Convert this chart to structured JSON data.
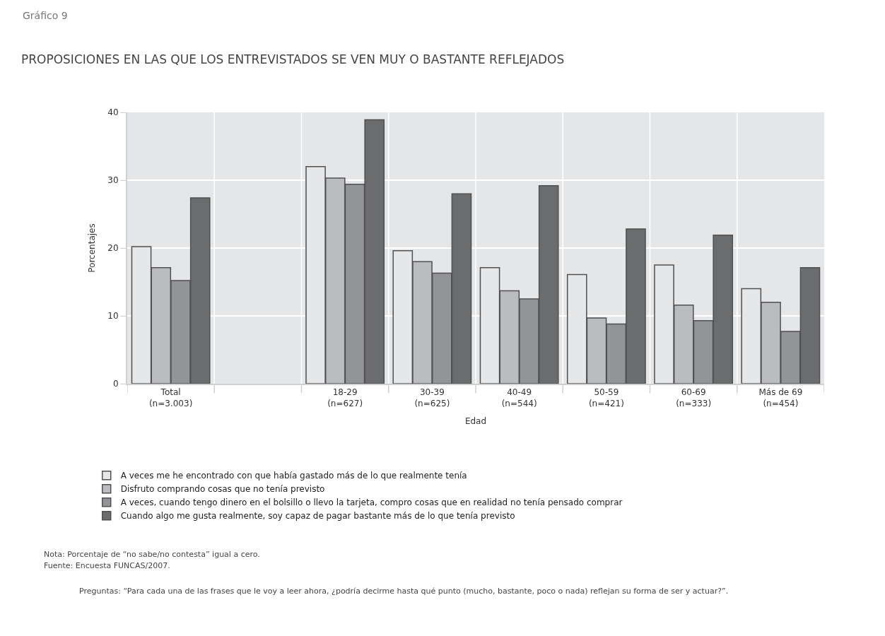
{
  "chart_data": {
    "type": "bar",
    "title": "PROPOSICIONES EN LAS QUE LOS ENTREVISTADOS SE VEN MUY O BASTANTE REFLEJADOS",
    "xlabel": "Edad",
    "ylabel": "Porcentajes",
    "categories": [
      "Total\n(n=3.003)",
      null,
      "18-29\n(n=627)",
      "30-39\n(n=625)",
      "40-49\n(n=544)",
      "50-59\n(n=421)",
      "60-69\n(n=333)",
      "Más de 69\n(n=454)"
    ],
    "series": [
      {
        "name": "A veces me he encontrado con que había gastado más de lo que realmente tenía",
        "color": "#e6e7e9",
        "values": [
          20.2,
          null,
          32.0,
          19.6,
          17.1,
          16.1,
          17.5,
          14.0
        ]
      },
      {
        "name": "Disfruto comprando cosas que no tenía previsto",
        "color": "#bbbcc0",
        "values": [
          17.1,
          null,
          30.3,
          18.0,
          13.7,
          9.7,
          11.6,
          12.0
        ]
      },
      {
        "name": "A veces, cuando tengo dinero en el bolsillo o llevo la tarjeta, compro cosas que en realidad no tenía pensado comprar",
        "color": "#939498",
        "values": [
          15.2,
          null,
          29.4,
          16.3,
          12.5,
          8.8,
          9.3,
          7.7
        ]
      },
      {
        "name": "Cuando algo me gusta realmente, soy capaz de pagar bastante más de lo que tenía previsto",
        "color": "#6b6c6e",
        "values": [
          27.4,
          null,
          38.9,
          28.0,
          29.2,
          22.8,
          21.9,
          17.1
        ]
      }
    ],
    "ylim": [
      0,
      40
    ],
    "yticks": [
      0,
      10,
      20,
      30,
      40
    ],
    "grid": true,
    "legend": "bottom left",
    "annotations": [
      "Gráfico 9",
      "Nota: Porcentaje de “no sabe/no contesta” igual a cero.",
      "Fuente: Encuesta FUNCAS/2007.",
      "Preguntas: “Para cada una de las frases que le voy a leer ahora, ¿podría decirme hasta qué punto (mucho, bastante, poco o nada) reflejan su forma de ser y actuar?”."
    ]
  }
}
